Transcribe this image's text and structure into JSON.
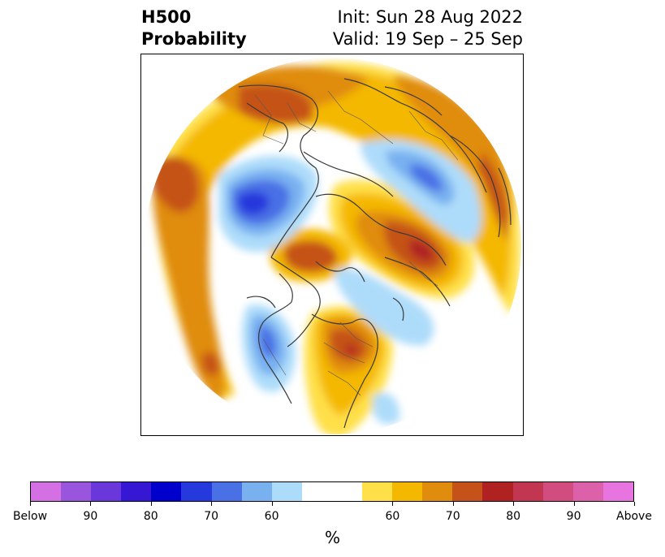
{
  "title": {
    "variable": "H500",
    "product": "Probability",
    "init": "Init: Sun 28 Aug 2022",
    "valid": "Valid: 19 Sep – 25 Sep"
  },
  "map": {
    "projection": "north-polar-stereographic",
    "outline_color": "#3a3a3a"
  },
  "colorbar": {
    "unit": "%",
    "below_colors": [
      "#d56fe4",
      "#9a55df",
      "#6a37da",
      "#3618d4",
      "#0000cd",
      "#2639dc",
      "#4a70e5",
      "#78b0f0",
      "#addcfa"
    ],
    "neutral_color": "#ffffff",
    "above_colors": [
      "#ffe048",
      "#f4b800",
      "#e08c0c",
      "#c55218",
      "#b02222",
      "#c23652",
      "#d14d80",
      "#dd61aa",
      "#e874df"
    ],
    "tick_labels": [
      "Below",
      "90",
      "80",
      "70",
      "60",
      "60",
      "70",
      "80",
      "90",
      "Above"
    ]
  }
}
